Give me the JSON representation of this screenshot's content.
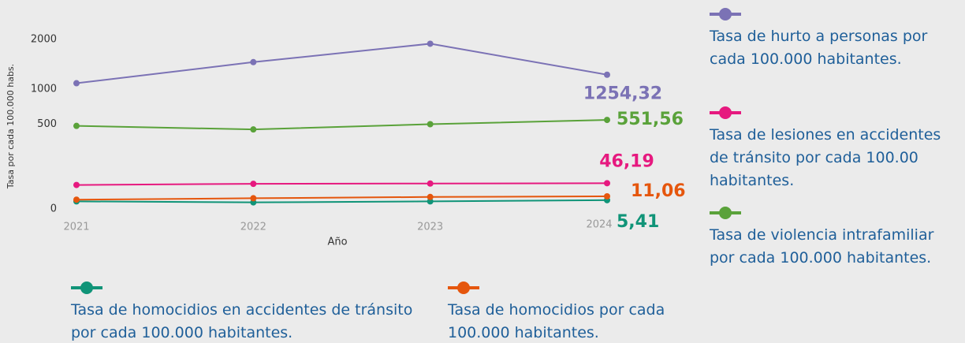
{
  "chart_data": {
    "type": "line",
    "x_label": "Año",
    "y_label": "Tasa por cada 100.000 habs.",
    "categories": [
      "2021",
      "2022",
      "2023",
      "2024"
    ],
    "yscale": "sqrt",
    "ylim": [
      0,
      2000
    ],
    "yticks": [
      0,
      500,
      1000,
      2000
    ],
    "series": [
      {
        "name": "Tasa de hurto a personas por cada 100.000 habitantes.",
        "color": "#7b72b5",
        "values": [
          1100,
          1500,
          1900,
          1254.32
        ],
        "value_labels": [
          null,
          null,
          null,
          "1254,32"
        ]
      },
      {
        "name": "Tasa de lesiones en accidentes de tránsito por cada 100.00 habitantes.",
        "color": "#e6197f",
        "values": [
          40,
          44,
          45,
          46.19
        ],
        "value_labels": [
          null,
          null,
          null,
          "46,19"
        ]
      },
      {
        "name": "Tasa de violencia intrafamiliar por cada 100.000 habitantes.",
        "color": "#5aa23a",
        "values": [
          480,
          440,
          500,
          551.56
        ],
        "value_labels": [
          null,
          null,
          null,
          "551,56"
        ]
      },
      {
        "name": "Tasa de homocidios en accidentes de tránsito por cada 100.000 habitantes.",
        "color": "#109478",
        "values": [
          4,
          3,
          4,
          5.41
        ],
        "value_labels": [
          null,
          null,
          null,
          "5,41"
        ]
      },
      {
        "name": "Tasa de homocidios por cada 100.000 habitantes.",
        "color": "#e5560d",
        "values": [
          6,
          8,
          10,
          11.06
        ],
        "value_labels": [
          null,
          null,
          null,
          "11,06"
        ]
      }
    ]
  }
}
